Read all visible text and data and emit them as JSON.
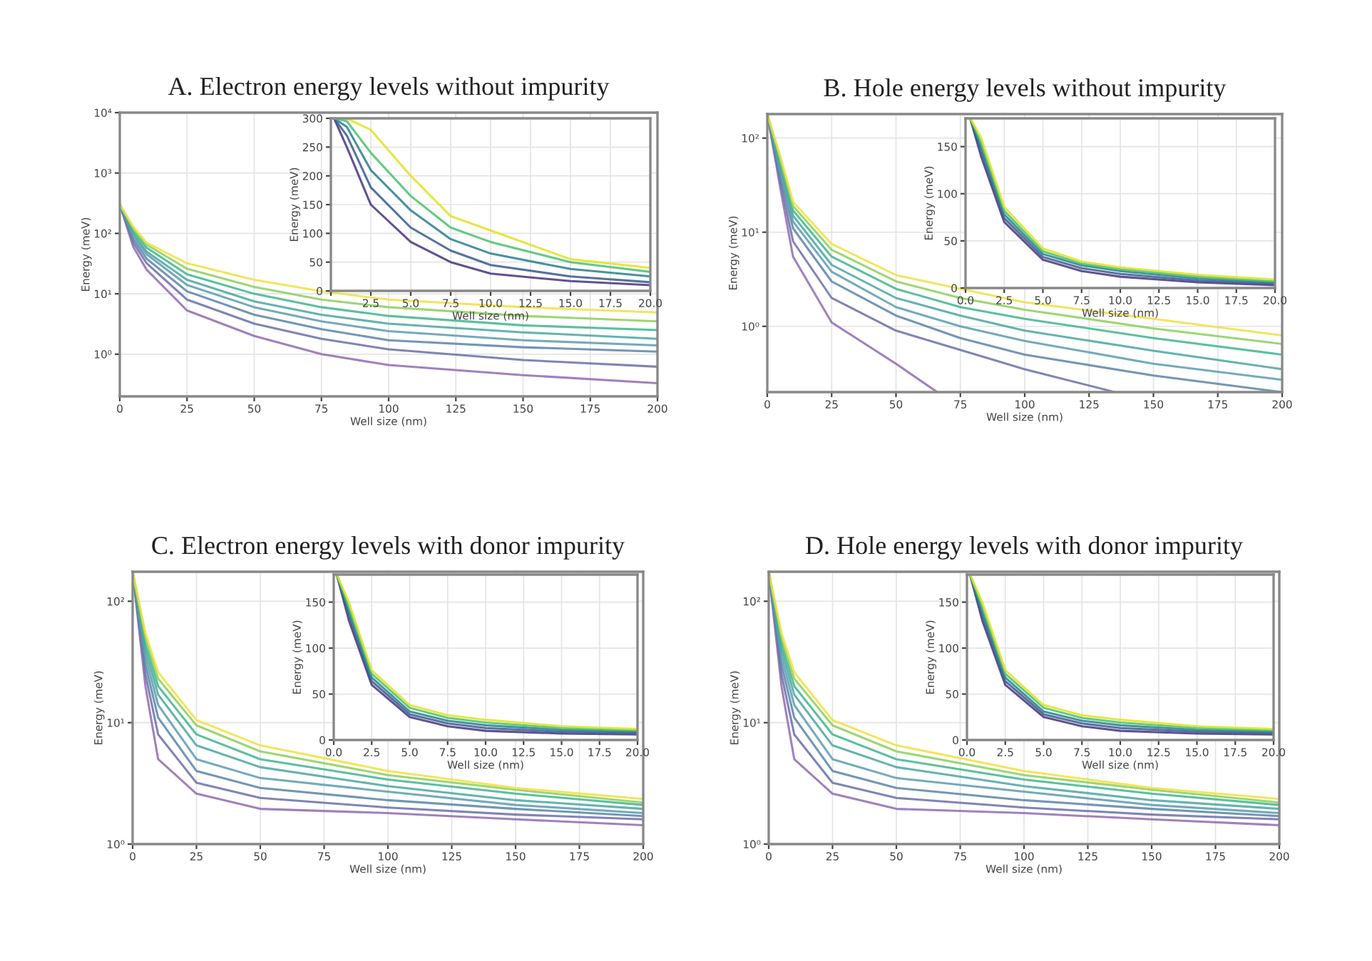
{
  "chart_data": [
    {
      "type": "line",
      "title": "A. Electron energy levels without impurity",
      "xlabel": "Well size (nm)",
      "ylabel": "Energy (meV)",
      "log": "y",
      "grid": true,
      "xlim": [
        0,
        200
      ],
      "xticks": [
        0,
        25,
        50,
        75,
        100,
        125,
        150,
        175,
        200
      ],
      "ylim": [
        0.2,
        10000
      ],
      "yticks": [
        {
          "value": 1,
          "label": "10⁰"
        },
        {
          "value": 10,
          "label": "10¹"
        },
        {
          "value": 100,
          "label": "10²"
        },
        {
          "value": 1000,
          "label": "10³"
        },
        {
          "value": 10000,
          "label": "10⁴"
        }
      ],
      "x": [
        0,
        5,
        10,
        25,
        50,
        75,
        100,
        150,
        200
      ],
      "series": [
        {
          "color": "#8e6bb0",
          "values": [
            300,
            60,
            25,
            5.3,
            2.0,
            1.0,
            0.66,
            0.45,
            0.33
          ]
        },
        {
          "color": "#6a6fa8",
          "values": [
            300,
            70,
            32,
            8,
            3.2,
            1.8,
            1.2,
            0.8,
            0.62
          ]
        },
        {
          "color": "#5b84a8",
          "values": [
            300,
            80,
            38,
            11,
            4.5,
            2.6,
            1.7,
            1.3,
            1.1
          ]
        },
        {
          "color": "#5a9bb0",
          "values": [
            300,
            90,
            45,
            14,
            6,
            3.5,
            2.4,
            1.7,
            1.4
          ]
        },
        {
          "color": "#4aa6a0",
          "values": [
            300,
            100,
            50,
            17,
            7.5,
            4.5,
            3.2,
            2.3,
            1.8
          ]
        },
        {
          "color": "#3eb58c",
          "values": [
            300,
            110,
            58,
            21,
            10,
            6,
            4.3,
            3.0,
            2.5
          ]
        },
        {
          "color": "#8ccf5a",
          "values": [
            300,
            120,
            65,
            26,
            13,
            8,
            6,
            4.3,
            3.5
          ]
        },
        {
          "color": "#f0e040",
          "values": [
            300,
            130,
            70,
            32,
            17,
            11,
            8,
            6,
            4.9
          ]
        }
      ]
    },
    {
      "type": "line",
      "xlabel": "Well size (nm)",
      "ylabel": "Energy (meV)",
      "grid": true,
      "xlim": [
        0,
        20
      ],
      "xticks": [
        {
          "value": 0,
          "label": null
        },
        {
          "value": 2.5,
          "label": "2.5"
        },
        {
          "value": 5,
          "label": "5.0"
        },
        {
          "value": 7.5,
          "label": "7.5"
        },
        {
          "value": 10,
          "label": "10.0"
        },
        {
          "value": 12.5,
          "label": "12.5"
        },
        {
          "value": 15,
          "label": "15.0"
        },
        {
          "value": 17.5,
          "label": "17.5"
        },
        {
          "value": 20,
          "label": "20.0"
        }
      ],
      "ylim": [
        0,
        300
      ],
      "yticks": [
        0,
        50,
        100,
        150,
        200,
        250,
        300
      ],
      "x": [
        0.2,
        1,
        2.5,
        5,
        7.5,
        10,
        15,
        20
      ],
      "series": [
        {
          "color": "#46327e",
          "values": [
            300,
            250,
            150,
            85,
            50,
            30,
            17,
            10
          ]
        },
        {
          "color": "#365c8d",
          "values": [
            300,
            270,
            180,
            110,
            70,
            45,
            25,
            15
          ]
        },
        {
          "color": "#277f8e",
          "values": [
            300,
            285,
            210,
            140,
            90,
            65,
            38,
            25
          ]
        },
        {
          "color": "#4ac16d",
          "values": [
            300,
            295,
            240,
            165,
            110,
            85,
            50,
            33
          ]
        },
        {
          "color": "#e0e31f",
          "values": [
            300,
            300,
            280,
            200,
            130,
            105,
            55,
            40
          ]
        }
      ]
    },
    {
      "type": "line",
      "title": "B. Hole energy levels without impurity",
      "xlabel": "Well size (nm)",
      "ylabel": "Energy (meV)",
      "log": "y",
      "grid": true,
      "xlim": [
        0,
        200
      ],
      "xticks": [
        0,
        25,
        50,
        75,
        100,
        125,
        150,
        175,
        200
      ],
      "ylim": [
        0.2,
        180
      ],
      "yticks": [
        {
          "value": 1,
          "label": "10⁰"
        },
        {
          "value": 10,
          "label": "10¹"
        },
        {
          "value": 100,
          "label": "10²"
        }
      ],
      "x": [
        0,
        5,
        10,
        25,
        50,
        75,
        100,
        150,
        200
      ],
      "series": [
        {
          "color": "#8e6bb0",
          "x": [
            0,
            5,
            10,
            25,
            50,
            66
          ],
          "values": [
            180,
            30,
            5.5,
            1.1,
            0.4,
            0.2
          ]
        },
        {
          "color": "#6a6fa8",
          "x": [
            0,
            5,
            10,
            25,
            50,
            100,
            135
          ],
          "values": [
            180,
            35,
            8,
            2,
            0.9,
            0.35,
            0.2
          ]
        },
        {
          "color": "#5b84a8",
          "values": [
            180,
            40,
            11,
            3,
            1.3,
            0.75,
            0.5,
            0.3,
            0.2
          ]
        },
        {
          "color": "#5a9bb0",
          "values": [
            180,
            45,
            13,
            3.8,
            1.6,
            1.0,
            0.7,
            0.4,
            0.27
          ]
        },
        {
          "color": "#4aa6a0",
          "values": [
            180,
            50,
            15,
            4.5,
            2.0,
            1.3,
            0.9,
            0.55,
            0.35
          ]
        },
        {
          "color": "#3eb58c",
          "values": [
            180,
            55,
            17,
            5.5,
            2.5,
            1.6,
            1.2,
            0.75,
            0.5
          ]
        },
        {
          "color": "#8ccf5a",
          "values": [
            180,
            60,
            19,
            6.5,
            3.0,
            2.0,
            1.5,
            0.95,
            0.65
          ]
        },
        {
          "color": "#f0e040",
          "values": [
            180,
            65,
            21,
            7.5,
            3.5,
            2.5,
            1.8,
            1.2,
            0.8
          ]
        }
      ]
    },
    {
      "type": "line",
      "xlabel": "Well size (nm)",
      "ylabel": "Energy (meV)",
      "grid": true,
      "xlim": [
        0,
        20
      ],
      "xticks": [
        {
          "value": 0,
          "label": "0.0"
        },
        {
          "value": 2.5,
          "label": "2.5"
        },
        {
          "value": 5,
          "label": "5.0"
        },
        {
          "value": 7.5,
          "label": "7.5"
        },
        {
          "value": 10,
          "label": "10.0"
        },
        {
          "value": 12.5,
          "label": "12.5"
        },
        {
          "value": 15,
          "label": "15.0"
        },
        {
          "value": 17.5,
          "label": "17.5"
        },
        {
          "value": 20,
          "label": "20.0"
        }
      ],
      "ylim": [
        0,
        180
      ],
      "yticks": [
        0,
        50,
        100,
        150
      ],
      "x": [
        0.3,
        1,
        2.5,
        5,
        7.5,
        10,
        15,
        20
      ],
      "series": [
        {
          "color": "#46327e",
          "values": [
            180,
            140,
            70,
            30,
            18,
            12,
            6,
            3
          ]
        },
        {
          "color": "#365c8d",
          "values": [
            180,
            145,
            74,
            33,
            21,
            15,
            8,
            4.5
          ]
        },
        {
          "color": "#277f8e",
          "values": [
            180,
            150,
            78,
            36,
            24,
            18,
            10,
            6
          ]
        },
        {
          "color": "#4ac16d",
          "values": [
            180,
            155,
            82,
            39,
            26,
            20,
            12,
            7
          ]
        },
        {
          "color": "#e0e31f",
          "values": [
            180,
            160,
            86,
            42,
            28,
            22,
            14,
            9
          ]
        }
      ]
    },
    {
      "type": "line",
      "title": "C. Electron energy levels with donor impurity",
      "xlabel": "Well size (nm)",
      "ylabel": "Energy (meV)",
      "log": "y",
      "grid": true,
      "xlim": [
        0,
        200
      ],
      "xticks": [
        0,
        25,
        50,
        75,
        100,
        125,
        150,
        175,
        200
      ],
      "ylim": [
        1,
        175
      ],
      "yticks": [
        {
          "value": 1,
          "label": "10⁰"
        },
        {
          "value": 10,
          "label": "10¹"
        },
        {
          "value": 100,
          "label": "10²"
        }
      ],
      "x": [
        0,
        5,
        10,
        25,
        50,
        100,
        150,
        200
      ],
      "series": [
        {
          "color": "#8e6bb0",
          "values": [
            175,
            20,
            5,
            2.6,
            1.95,
            1.8,
            1.6,
            1.43
          ]
        },
        {
          "color": "#6a6fa8",
          "values": [
            175,
            25,
            8,
            3.2,
            2.4,
            2.0,
            1.75,
            1.6
          ]
        },
        {
          "color": "#5b84a8",
          "values": [
            175,
            30,
            11,
            4.0,
            2.9,
            2.3,
            1.95,
            1.7
          ]
        },
        {
          "color": "#5a9bb0",
          "values": [
            175,
            35,
            14,
            5,
            3.5,
            2.7,
            2.1,
            1.8
          ]
        },
        {
          "color": "#4aa6a0",
          "values": [
            175,
            40,
            17,
            6.5,
            4.3,
            3.0,
            2.3,
            1.95
          ]
        },
        {
          "color": "#3eb58c",
          "values": [
            175,
            45,
            20,
            8,
            5,
            3.4,
            2.6,
            2.1
          ]
        },
        {
          "color": "#8ccf5a",
          "values": [
            175,
            50,
            23,
            9.5,
            5.8,
            3.7,
            2.8,
            2.2
          ]
        },
        {
          "color": "#f0e040",
          "values": [
            175,
            55,
            26,
            10.5,
            6.5,
            4,
            2.9,
            2.35
          ]
        }
      ]
    },
    {
      "type": "line",
      "xlabel": "Well size (nm)",
      "ylabel": "Energy (meV)",
      "grid": true,
      "xlim": [
        0,
        20
      ],
      "xticks": [
        {
          "value": 0,
          "label": "0.0"
        },
        {
          "value": 2.5,
          "label": "2.5"
        },
        {
          "value": 5,
          "label": "5.0"
        },
        {
          "value": 7.5,
          "label": "7.5"
        },
        {
          "value": 10,
          "label": "10.0"
        },
        {
          "value": 12.5,
          "label": "12.5"
        },
        {
          "value": 15,
          "label": "15.0"
        },
        {
          "value": 17.5,
          "label": "17.5"
        },
        {
          "value": 20,
          "label": "20.0"
        }
      ],
      "ylim": [
        0,
        180
      ],
      "yticks": [
        0,
        50,
        100,
        150
      ],
      "x": [
        0.2,
        1,
        2.5,
        5,
        7.5,
        10,
        15,
        20
      ],
      "series": [
        {
          "color": "#46327e",
          "values": [
            180,
            130,
            60,
            25,
            15,
            10,
            7,
            6
          ]
        },
        {
          "color": "#365c8d",
          "values": [
            180,
            135,
            64,
            28,
            18,
            13,
            9,
            7.5
          ]
        },
        {
          "color": "#277f8e",
          "values": [
            180,
            140,
            68,
            31,
            21,
            16,
            11,
            9
          ]
        },
        {
          "color": "#4ac16d",
          "values": [
            180,
            145,
            72,
            35,
            24,
            19,
            13,
            10.5
          ]
        },
        {
          "color": "#e0e31f",
          "values": [
            180,
            150,
            76,
            38,
            27,
            22,
            15,
            12
          ]
        }
      ]
    },
    {
      "type": "line",
      "title": "D. Hole energy levels with donor impurity",
      "xlabel": "Well size (nm)",
      "ylabel": "Energy (meV)",
      "log": "y",
      "grid": true,
      "xlim": [
        0,
        200
      ],
      "xticks": [
        0,
        25,
        50,
        75,
        100,
        125,
        150,
        175,
        200
      ],
      "ylim": [
        1,
        175
      ],
      "yticks": [
        {
          "value": 1,
          "label": "10⁰"
        },
        {
          "value": 10,
          "label": "10¹"
        },
        {
          "value": 100,
          "label": "10²"
        }
      ],
      "x": [
        0,
        5,
        10,
        25,
        50,
        100,
        150,
        200
      ],
      "series": [
        {
          "color": "#8e6bb0",
          "values": [
            175,
            20,
            5,
            2.6,
            1.95,
            1.8,
            1.6,
            1.43
          ]
        },
        {
          "color": "#6a6fa8",
          "values": [
            175,
            25,
            8,
            3.2,
            2.4,
            2.0,
            1.75,
            1.6
          ]
        },
        {
          "color": "#5b84a8",
          "values": [
            175,
            30,
            11,
            4.0,
            2.9,
            2.3,
            1.95,
            1.7
          ]
        },
        {
          "color": "#5a9bb0",
          "values": [
            175,
            35,
            14,
            5,
            3.5,
            2.7,
            2.1,
            1.8
          ]
        },
        {
          "color": "#4aa6a0",
          "values": [
            175,
            40,
            17,
            6.5,
            4.3,
            3.0,
            2.3,
            1.95
          ]
        },
        {
          "color": "#3eb58c",
          "values": [
            175,
            45,
            20,
            8,
            5,
            3.4,
            2.6,
            2.1
          ]
        },
        {
          "color": "#8ccf5a",
          "values": [
            175,
            50,
            23,
            9.5,
            5.8,
            3.7,
            2.8,
            2.2
          ]
        },
        {
          "color": "#f0e040",
          "values": [
            175,
            55,
            26,
            10.5,
            6.5,
            4,
            2.9,
            2.35
          ]
        }
      ]
    },
    {
      "type": "line",
      "xlabel": "Well size (nm)",
      "ylabel": "Energy (meV)",
      "grid": true,
      "xlim": [
        0,
        20
      ],
      "xticks": [
        {
          "value": 0,
          "label": "0.0"
        },
        {
          "value": 2.5,
          "label": "2.5"
        },
        {
          "value": 5,
          "label": "5.0"
        },
        {
          "value": 7.5,
          "label": "7.5"
        },
        {
          "value": 10,
          "label": "10.0"
        },
        {
          "value": 12.5,
          "label": "12.5"
        },
        {
          "value": 15,
          "label": "15.0"
        },
        {
          "value": 17.5,
          "label": "17.5"
        },
        {
          "value": 20,
          "label": "20.0"
        }
      ],
      "ylim": [
        0,
        180
      ],
      "yticks": [
        0,
        50,
        100,
        150
      ],
      "x": [
        0.2,
        1,
        2.5,
        5,
        7.5,
        10,
        15,
        20
      ],
      "series": [
        {
          "color": "#46327e",
          "values": [
            180,
            130,
            60,
            25,
            15,
            10,
            7,
            6
          ]
        },
        {
          "color": "#365c8d",
          "values": [
            180,
            135,
            64,
            28,
            18,
            13,
            9,
            7.5
          ]
        },
        {
          "color": "#277f8e",
          "values": [
            180,
            140,
            68,
            31,
            21,
            16,
            11,
            9
          ]
        },
        {
          "color": "#4ac16d",
          "values": [
            180,
            145,
            72,
            35,
            24,
            19,
            13,
            10.5
          ]
        },
        {
          "color": "#e0e31f",
          "values": [
            180,
            150,
            76,
            38,
            27,
            22,
            15,
            12
          ]
        }
      ]
    }
  ]
}
